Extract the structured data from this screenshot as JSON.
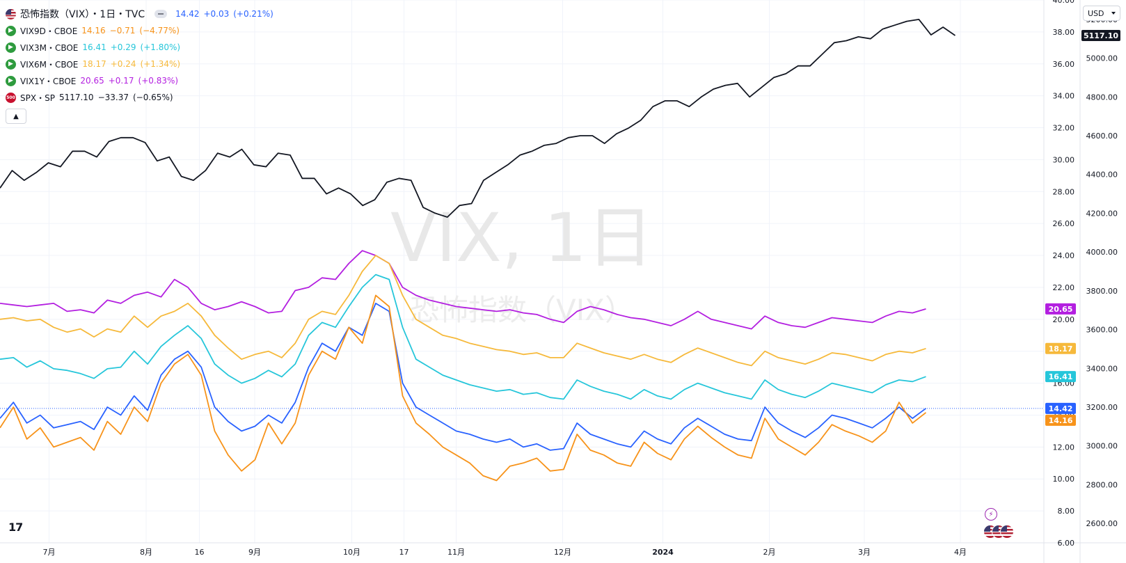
{
  "header": {
    "title": "恐怖指数（VIX）・1日・TVC",
    "last": "14.42",
    "change": "+0.03",
    "change_pct": "(+0.21%)",
    "change_color": "#2962ff"
  },
  "legend": [
    {
      "symbol": "VIX9D・CBOE",
      "last": "14.16",
      "change": "−0.71",
      "pct": "(−4.77%)",
      "color": "#f7931a",
      "icon": "play-icon"
    },
    {
      "symbol": "VIX3M・CBOE",
      "last": "16.41",
      "change": "+0.29",
      "pct": "(+1.80%)",
      "color": "#26c6da",
      "icon": "play-icon"
    },
    {
      "symbol": "VIX6M・CBOE",
      "last": "18.17",
      "change": "+0.24",
      "pct": "(+1.34%)",
      "color": "#f6b93b",
      "icon": "play-icon"
    },
    {
      "symbol": "VIX1Y・CBOE",
      "last": "20.65",
      "change": "+0.17",
      "pct": "(+0.83%)",
      "color": "#b31fe0",
      "icon": "play-icon"
    },
    {
      "symbol": "SPX・SP",
      "last": "5117.10",
      "change": "−33.37",
      "pct": "(−0.65%)",
      "color": "#131722",
      "icon": "sp500-icon",
      "icon_text": "500"
    }
  ],
  "currency": "USD",
  "watermark": {
    "line1": "VIX, 1日",
    "line2": "恐怖指数（VIX）"
  },
  "chart_data": {
    "type": "line",
    "title": "恐怖指数（VIX）・1日・TVC",
    "x_axis": {
      "ticks": [
        {
          "label": "7月",
          "t": 0.047
        },
        {
          "label": "8月",
          "t": 0.14
        },
        {
          "label": "16",
          "t": 0.191
        },
        {
          "label": "9月",
          "t": 0.244
        },
        {
          "label": "10月",
          "t": 0.337
        },
        {
          "label": "17",
          "t": 0.387
        },
        {
          "label": "11月",
          "t": 0.437
        },
        {
          "label": "12月",
          "t": 0.539
        },
        {
          "label": "2024",
          "t": 0.635,
          "bold": true
        },
        {
          "label": "2月",
          "t": 0.737
        },
        {
          "label": "3月",
          "t": 0.828
        },
        {
          "label": "4月",
          "t": 0.92
        }
      ]
    },
    "y_left": {
      "label": "",
      "min": 6,
      "max": 40,
      "ticks": [
        "6.00",
        "8.00",
        "10.00",
        "12.00",
        "14.00",
        "16.00",
        "18.00",
        "20.00",
        "22.00",
        "24.00",
        "26.00",
        "28.00",
        "30.00",
        "32.00",
        "34.00",
        "36.00",
        "38.00",
        "40.00"
      ]
    },
    "y_right": {
      "label": "",
      "min": 2500,
      "max": 5300,
      "ticks": [
        "2600.00",
        "2800.00",
        "3000.00",
        "3200.00",
        "3400.00",
        "3600.00",
        "3800.00",
        "4000.00",
        "4200.00",
        "4400.00",
        "4600.00",
        "4800.00",
        "5000.00",
        "5200.00"
      ]
    },
    "grid": true,
    "reference_line": {
      "value": 14.42,
      "color": "#2962ff"
    },
    "price_labels": [
      {
        "series": "SPX",
        "value": "5117.10",
        "color": "#131722",
        "axis": "right"
      },
      {
        "series": "VIX1Y",
        "value": "20.65",
        "color": "#b31fe0",
        "axis": "left"
      },
      {
        "series": "VIX6M",
        "value": "18.17",
        "color": "#f6b93b",
        "axis": "left"
      },
      {
        "series": "VIX3M",
        "value": "16.41",
        "color": "#26c6da",
        "axis": "left"
      },
      {
        "series": "VIX",
        "value": "14.42",
        "color": "#2962ff",
        "axis": "left"
      },
      {
        "series": "VIX9D",
        "value": "14.16",
        "color": "#f7931a",
        "axis": "left"
      }
    ],
    "series": [
      {
        "name": "SPX",
        "axis": "right",
        "color": "#131722",
        "end": 0.915,
        "values": [
          4330,
          4420,
          4370,
          4410,
          4460,
          4440,
          4520,
          4520,
          4490,
          4570,
          4590,
          4590,
          4565,
          4470,
          4490,
          4390,
          4370,
          4420,
          4510,
          4490,
          4530,
          4450,
          4440,
          4510,
          4500,
          4380,
          4380,
          4300,
          4330,
          4300,
          4240,
          4270,
          4360,
          4380,
          4370,
          4230,
          4200,
          4180,
          4240,
          4250,
          4370,
          4410,
          4450,
          4500,
          4520,
          4550,
          4560,
          4590,
          4600,
          4600,
          4560,
          4610,
          4640,
          4680,
          4750,
          4780,
          4780,
          4750,
          4800,
          4840,
          4860,
          4870,
          4800,
          4850,
          4900,
          4920,
          4960,
          4960,
          5020,
          5080,
          5090,
          5110,
          5100,
          5150,
          5170,
          5190,
          5200,
          5120,
          5160,
          5117
        ]
      },
      {
        "name": "VIX1Y",
        "axis": "left",
        "color": "#b31fe0",
        "end": 0.887,
        "values": [
          21.0,
          20.9,
          20.8,
          20.9,
          21.0,
          20.5,
          20.6,
          20.4,
          21.2,
          21.0,
          21.5,
          21.7,
          21.4,
          22.5,
          22.0,
          21.0,
          20.6,
          20.8,
          21.1,
          20.8,
          20.4,
          20.5,
          21.8,
          22.0,
          22.6,
          22.5,
          23.5,
          24.3,
          24.0,
          23.5,
          22.0,
          21.5,
          21.2,
          21.0,
          20.8,
          20.7,
          20.6,
          20.5,
          20.6,
          20.4,
          20.3,
          20.0,
          19.8,
          20.5,
          20.8,
          20.6,
          20.3,
          20.1,
          20.0,
          19.8,
          19.6,
          20.0,
          20.5,
          20.0,
          19.8,
          19.6,
          19.4,
          20.2,
          19.8,
          19.6,
          19.5,
          19.8,
          20.1,
          20.0,
          19.9,
          19.8,
          20.2,
          20.5,
          20.4,
          20.65
        ]
      },
      {
        "name": "VIX6M",
        "axis": "left",
        "color": "#f6b93b",
        "end": 0.887,
        "values": [
          20.0,
          20.1,
          19.9,
          20.0,
          19.5,
          19.2,
          19.4,
          18.9,
          19.4,
          19.2,
          20.2,
          19.5,
          20.2,
          20.5,
          21.0,
          20.2,
          19.0,
          18.2,
          17.5,
          17.8,
          18.0,
          17.6,
          18.5,
          20.0,
          20.5,
          20.3,
          21.5,
          23.0,
          24.0,
          23.5,
          21.5,
          20.0,
          19.5,
          19.0,
          18.8,
          18.5,
          18.3,
          18.1,
          18.0,
          17.8,
          17.9,
          17.6,
          17.6,
          18.5,
          18.2,
          17.9,
          17.7,
          17.5,
          17.8,
          17.5,
          17.3,
          17.8,
          18.2,
          17.9,
          17.6,
          17.3,
          17.1,
          18.0,
          17.6,
          17.4,
          17.2,
          17.5,
          17.9,
          17.8,
          17.6,
          17.4,
          17.8,
          18.0,
          17.9,
          18.17
        ]
      },
      {
        "name": "VIX3M",
        "axis": "left",
        "color": "#26c6da",
        "end": 0.887,
        "values": [
          17.5,
          17.6,
          17.0,
          17.4,
          16.9,
          16.8,
          16.6,
          16.3,
          16.9,
          17.0,
          18.0,
          17.2,
          18.3,
          19.0,
          19.6,
          18.8,
          17.2,
          16.5,
          16.0,
          16.3,
          16.8,
          16.4,
          17.2,
          19.0,
          19.8,
          19.5,
          20.8,
          22.0,
          22.8,
          22.5,
          19.5,
          17.5,
          17.0,
          16.5,
          16.2,
          15.9,
          15.7,
          15.5,
          15.6,
          15.3,
          15.4,
          15.1,
          15.0,
          16.2,
          15.8,
          15.5,
          15.3,
          15.0,
          15.6,
          15.2,
          15.0,
          15.6,
          16.0,
          15.7,
          15.4,
          15.2,
          15.0,
          16.2,
          15.6,
          15.3,
          15.1,
          15.5,
          16.0,
          15.8,
          15.6,
          15.4,
          15.9,
          16.2,
          16.1,
          16.41
        ]
      },
      {
        "name": "VIX",
        "axis": "left",
        "color": "#2962ff",
        "end": 0.887,
        "values": [
          13.8,
          14.8,
          13.5,
          14.0,
          13.2,
          13.4,
          13.6,
          13.1,
          14.5,
          14.0,
          15.2,
          14.3,
          16.5,
          17.5,
          18.0,
          17.0,
          14.5,
          13.6,
          13.0,
          13.3,
          14.0,
          13.5,
          14.8,
          17.0,
          18.5,
          18.0,
          19.5,
          19.0,
          21.0,
          20.5,
          16.0,
          14.5,
          14.0,
          13.5,
          13.0,
          12.8,
          12.5,
          12.3,
          12.5,
          12.0,
          12.2,
          11.8,
          11.9,
          13.5,
          12.8,
          12.5,
          12.2,
          12.0,
          13.0,
          12.5,
          12.2,
          13.2,
          13.8,
          13.3,
          12.8,
          12.5,
          12.4,
          14.5,
          13.5,
          13.0,
          12.6,
          13.2,
          14.0,
          13.8,
          13.5,
          13.2,
          13.8,
          14.5,
          13.8,
          14.42
        ]
      },
      {
        "name": "VIX9D",
        "axis": "left",
        "color": "#f7931a",
        "end": 0.887,
        "values": [
          13.2,
          14.5,
          12.5,
          13.2,
          12.0,
          12.3,
          12.6,
          11.8,
          13.6,
          12.8,
          14.5,
          13.6,
          16.0,
          17.2,
          17.8,
          16.5,
          13.0,
          11.5,
          10.5,
          11.2,
          13.5,
          12.2,
          13.5,
          16.5,
          18.0,
          17.5,
          19.5,
          18.5,
          21.5,
          20.8,
          15.2,
          13.5,
          12.8,
          12.0,
          11.5,
          11.0,
          10.2,
          9.9,
          10.8,
          11.0,
          11.3,
          10.5,
          10.6,
          12.8,
          11.8,
          11.5,
          11.0,
          10.8,
          12.3,
          11.6,
          11.2,
          12.5,
          13.3,
          12.6,
          12.0,
          11.5,
          11.3,
          13.8,
          12.5,
          12.0,
          11.5,
          12.3,
          13.4,
          13.0,
          12.7,
          12.3,
          13.0,
          14.8,
          13.5,
          14.16
        ]
      }
    ]
  }
}
